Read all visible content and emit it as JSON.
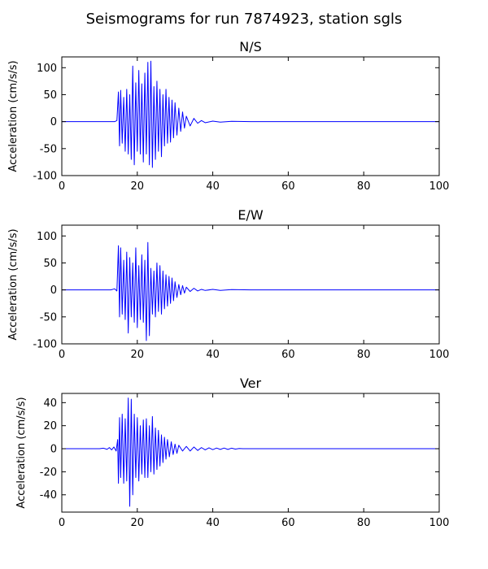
{
  "colors": {
    "background": "#ffffff",
    "trace": "#0000ff",
    "axes": "#000000"
  },
  "chart_data": {
    "title": "Seismograms for run 7874923, station sgls",
    "subplots": [
      {
        "type": "line",
        "title": "N/S",
        "xlabel": "",
        "ylabel": "Acceleration (cm/s/s)",
        "xlim": [
          0,
          100
        ],
        "ylim": [
          -100,
          120
        ],
        "xticks": [
          0,
          20,
          40,
          60,
          80,
          100
        ],
        "yticks": [
          -100,
          -50,
          0,
          50,
          100
        ],
        "series": [
          {
            "color": "#0000ff",
            "x": [
              0,
              10,
              14.0,
              14.6,
              15.0,
              15.3,
              15.6,
              16.0,
              16.4,
              16.8,
              17.2,
              17.6,
              18.0,
              18.4,
              18.8,
              19.2,
              19.6,
              20.0,
              20.4,
              20.8,
              21.2,
              21.6,
              22.0,
              22.4,
              22.8,
              23.2,
              23.6,
              24.0,
              24.4,
              24.8,
              25.2,
              25.6,
              26.0,
              26.4,
              26.8,
              27.2,
              27.6,
              28.0,
              28.4,
              28.8,
              29.2,
              29.6,
              30.0,
              30.5,
              31.0,
              31.5,
              32.0,
              32.5,
              33.0,
              34.0,
              35.0,
              36.0,
              37.0,
              38.0,
              40.0,
              42.0,
              45.0,
              50.0,
              60.0,
              80.0,
              100.0
            ],
            "y": [
              0,
              0,
              0,
              2,
              55,
              -45,
              58,
              -40,
              45,
              -55,
              60,
              -60,
              50,
              -70,
              103,
              -80,
              72,
              -55,
              95,
              -60,
              70,
              -75,
              90,
              -60,
              110,
              -80,
              112,
              -85,
              65,
              -70,
              75,
              -55,
              60,
              -65,
              50,
              -45,
              60,
              -40,
              45,
              -38,
              40,
              -30,
              35,
              -25,
              25,
              -18,
              18,
              -12,
              10,
              -8,
              6,
              -3,
              2,
              -2,
              1,
              -1,
              0.5,
              0,
              0,
              0,
              0
            ]
          }
        ]
      },
      {
        "type": "line",
        "title": "E/W",
        "xlabel": "",
        "ylabel": "Acceleration (cm/s/s)",
        "xlim": [
          0,
          100
        ],
        "ylim": [
          -100,
          120
        ],
        "xticks": [
          0,
          20,
          40,
          60,
          80,
          100
        ],
        "yticks": [
          -100,
          -50,
          0,
          50,
          100
        ],
        "series": [
          {
            "color": "#0000ff",
            "x": [
              0,
              10,
              13.0,
              14.0,
              14.6,
              15.0,
              15.3,
              15.6,
              16.0,
              16.4,
              16.8,
              17.2,
              17.6,
              18.0,
              18.4,
              18.8,
              19.2,
              19.6,
              20.0,
              20.4,
              20.8,
              21.2,
              21.6,
              22.0,
              22.4,
              22.8,
              23.2,
              23.6,
              24.0,
              24.4,
              24.8,
              25.2,
              25.6,
              26.0,
              26.4,
              26.8,
              27.2,
              27.6,
              28.0,
              28.4,
              28.8,
              29.2,
              29.6,
              30.0,
              30.5,
              31.0,
              31.5,
              32.0,
              32.5,
              33.0,
              34.0,
              35.0,
              36.0,
              37.0,
              38.0,
              40.0,
              42.0,
              45.0,
              50.0,
              60.0,
              80.0,
              100.0
            ],
            "y": [
              0,
              0,
              0,
              2,
              -2,
              82,
              -50,
              78,
              -45,
              55,
              -55,
              70,
              -80,
              60,
              -50,
              50,
              -60,
              78,
              -70,
              45,
              -55,
              65,
              -60,
              55,
              -94,
              88,
              -85,
              40,
              -45,
              35,
              -50,
              50,
              -40,
              45,
              -45,
              35,
              -35,
              28,
              -30,
              25,
              -25,
              22,
              -20,
              15,
              -14,
              10,
              -9,
              8,
              -6,
              5,
              -3,
              3,
              -2,
              1,
              -1,
              1,
              -1,
              0.5,
              0,
              0,
              0,
              0
            ]
          }
        ]
      },
      {
        "type": "line",
        "title": "Ver",
        "xlabel": "",
        "ylabel": "Acceleration (cm/s/s)",
        "xlim": [
          0,
          100
        ],
        "ylim": [
          -55,
          48
        ],
        "xticks": [
          0,
          20,
          40,
          60,
          80,
          100
        ],
        "yticks": [
          -40,
          -20,
          0,
          20,
          40
        ],
        "series": [
          {
            "color": "#0000ff",
            "x": [
              0,
              10,
              11.0,
              12.0,
              12.6,
              13.2,
              13.8,
              14.4,
              14.8,
              15.0,
              15.3,
              15.6,
              16.0,
              16.4,
              16.8,
              17.2,
              17.6,
              18.0,
              18.4,
              18.8,
              19.2,
              19.6,
              20.0,
              20.4,
              20.8,
              21.2,
              21.6,
              22.0,
              22.4,
              22.8,
              23.2,
              23.6,
              24.0,
              24.4,
              24.8,
              25.2,
              25.6,
              26.0,
              26.4,
              26.8,
              27.2,
              27.6,
              28.0,
              28.5,
              29.0,
              29.5,
              30.0,
              30.5,
              31.0,
              32.0,
              33.0,
              34.0,
              35.0,
              36.0,
              37.0,
              38.0,
              39.0,
              40.0,
              41.0,
              42.0,
              43.0,
              44.0,
              45.0,
              46.0,
              47.0,
              48.0,
              50.0,
              60.0,
              80.0,
              100.0
            ],
            "y": [
              0,
              0,
              0.5,
              -0.5,
              1,
              -1,
              1.5,
              -2,
              8,
              -30,
              27,
              -25,
              30,
              -30,
              26,
              -28,
              44,
              -50,
              43,
              -40,
              30,
              -25,
              27,
              -28,
              20,
              -22,
              25,
              -25,
              26,
              -25,
              20,
              -20,
              28,
              -22,
              18,
              -18,
              16,
              -15,
              12,
              -12,
              10,
              -9,
              8,
              -7,
              6,
              -5,
              4,
              -4,
              3,
              -2,
              2,
              -2,
              1.5,
              -1.5,
              1,
              -1,
              0.8,
              -0.8,
              0.6,
              -0.6,
              0.6,
              -0.6,
              0.5,
              -0.3,
              0.2,
              0,
              0,
              0,
              0,
              0
            ]
          }
        ]
      }
    ]
  }
}
